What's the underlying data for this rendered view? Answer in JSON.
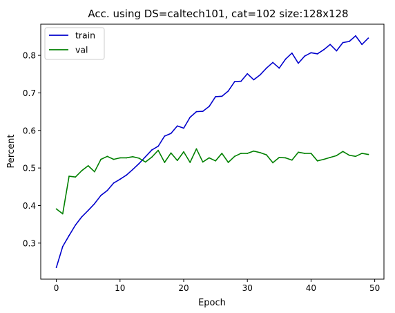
{
  "chart_data": {
    "type": "line",
    "title": "Acc. using DS=caltech101, cat=102 size:128x128",
    "xlabel": "Epoch",
    "ylabel": "Percent",
    "xlim": [
      -2.45,
      51.45
    ],
    "ylim": [
      0.204,
      0.883
    ],
    "xticks": [
      0,
      10,
      20,
      30,
      40,
      50
    ],
    "yticks": [
      0.3,
      0.4,
      0.5,
      0.6,
      0.7,
      0.8
    ],
    "xtick_labels": [
      "0",
      "10",
      "20",
      "30",
      "40",
      "50"
    ],
    "ytick_labels": [
      "0.3",
      "0.4",
      "0.5",
      "0.6",
      "0.7",
      "0.8"
    ],
    "grid": false,
    "legend": "top-left",
    "x": [
      0,
      1,
      2,
      3,
      4,
      5,
      6,
      7,
      8,
      9,
      10,
      11,
      12,
      13,
      14,
      15,
      16,
      17,
      18,
      19,
      20,
      21,
      22,
      23,
      24,
      25,
      26,
      27,
      28,
      29,
      30,
      31,
      32,
      33,
      34,
      35,
      36,
      37,
      38,
      39,
      40,
      41,
      42,
      43,
      44,
      45,
      46,
      47,
      48,
      49
    ],
    "series": [
      {
        "name": "train",
        "color": "#0000cc",
        "values": [
          0.235,
          0.291,
          0.32,
          0.348,
          0.37,
          0.387,
          0.405,
          0.427,
          0.44,
          0.46,
          0.47,
          0.481,
          0.496,
          0.512,
          0.53,
          0.548,
          0.558,
          0.585,
          0.592,
          0.612,
          0.606,
          0.635,
          0.65,
          0.651,
          0.664,
          0.69,
          0.691,
          0.705,
          0.73,
          0.731,
          0.751,
          0.735,
          0.748,
          0.766,
          0.781,
          0.766,
          0.79,
          0.806,
          0.779,
          0.798,
          0.807,
          0.804,
          0.815,
          0.829,
          0.812,
          0.834,
          0.837,
          0.852,
          0.829,
          0.846
        ]
      },
      {
        "name": "val",
        "color": "#008000",
        "values": [
          0.391,
          0.378,
          0.478,
          0.476,
          0.493,
          0.506,
          0.49,
          0.523,
          0.531,
          0.523,
          0.527,
          0.527,
          0.53,
          0.526,
          0.516,
          0.529,
          0.547,
          0.515,
          0.54,
          0.52,
          0.543,
          0.515,
          0.551,
          0.516,
          0.527,
          0.519,
          0.539,
          0.515,
          0.531,
          0.539,
          0.539,
          0.545,
          0.541,
          0.535,
          0.514,
          0.528,
          0.527,
          0.521,
          0.542,
          0.539,
          0.539,
          0.519,
          0.523,
          0.528,
          0.533,
          0.544,
          0.534,
          0.531,
          0.539,
          0.536
        ]
      }
    ]
  }
}
